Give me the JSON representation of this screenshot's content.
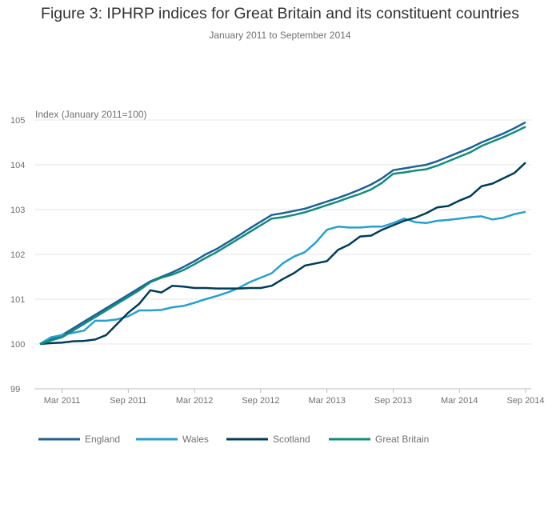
{
  "title": "Figure 3: IPHRP indices for Great Britain and its constituent countries",
  "subtitle": "January 2011 to September 2014",
  "chart_data": {
    "type": "line",
    "title": "Figure 3: IPHRP indices for Great Britain and its constituent countries",
    "subtitle": "January 2011 to September 2014",
    "ylabel": "Index (January 2011=100)",
    "xlabel": "",
    "ylim": [
      99,
      105
    ],
    "yticks": [
      99,
      100,
      101,
      102,
      103,
      104,
      105
    ],
    "xticks": [
      "Mar 2011",
      "Sep 2011",
      "Mar 2012",
      "Sep 2012",
      "Mar 2013",
      "Sep 2013",
      "Mar 2014",
      "Sep 2014"
    ],
    "x": [
      "Jan 2011",
      "Feb 2011",
      "Mar 2011",
      "Apr 2011",
      "May 2011",
      "Jun 2011",
      "Jul 2011",
      "Aug 2011",
      "Sep 2011",
      "Oct 2011",
      "Nov 2011",
      "Dec 2011",
      "Jan 2012",
      "Feb 2012",
      "Mar 2012",
      "Apr 2012",
      "May 2012",
      "Jun 2012",
      "Jul 2012",
      "Aug 2012",
      "Sep 2012",
      "Oct 2012",
      "Nov 2012",
      "Dec 2012",
      "Jan 2013",
      "Feb 2013",
      "Mar 2013",
      "Apr 2013",
      "May 2013",
      "Jun 2013",
      "Jul 2013",
      "Aug 2013",
      "Sep 2013",
      "Oct 2013",
      "Nov 2013",
      "Dec 2013",
      "Jan 2014",
      "Feb 2014",
      "Mar 2014",
      "Apr 2014",
      "May 2014",
      "Jun 2014",
      "Jul 2014",
      "Aug 2014",
      "Sep 2014"
    ],
    "grid": true,
    "legend_position": "bottom",
    "series": [
      {
        "name": "England",
        "color": "#206095",
        "values": [
          100.0,
          100.1,
          100.2,
          100.35,
          100.5,
          100.65,
          100.8,
          100.95,
          101.1,
          101.25,
          101.4,
          101.5,
          101.6,
          101.72,
          101.85,
          102.0,
          102.12,
          102.27,
          102.42,
          102.58,
          102.73,
          102.88,
          102.92,
          102.97,
          103.02,
          103.1,
          103.18,
          103.26,
          103.35,
          103.45,
          103.56,
          103.7,
          103.88,
          103.92,
          103.96,
          104.0,
          104.08,
          104.18,
          104.28,
          104.38,
          104.5,
          104.6,
          104.7,
          104.82,
          104.95
        ]
      },
      {
        "name": "Wales",
        "color": "#27A0CC",
        "values": [
          100.0,
          100.15,
          100.2,
          100.25,
          100.3,
          100.52,
          100.52,
          100.55,
          100.62,
          100.75,
          100.75,
          100.76,
          100.82,
          100.85,
          100.92,
          101.0,
          101.07,
          101.15,
          101.25,
          101.38,
          101.48,
          101.58,
          101.8,
          101.95,
          102.05,
          102.27,
          102.55,
          102.62,
          102.6,
          102.6,
          102.62,
          102.62,
          102.7,
          102.8,
          102.72,
          102.7,
          102.75,
          102.77,
          102.8,
          102.83,
          102.85,
          102.78,
          102.82,
          102.9,
          102.95
        ]
      },
      {
        "name": "Scotland",
        "color": "#003C57",
        "values": [
          100.0,
          100.02,
          100.03,
          100.06,
          100.07,
          100.1,
          100.2,
          100.45,
          100.7,
          100.9,
          101.2,
          101.15,
          101.3,
          101.28,
          101.25,
          101.25,
          101.24,
          101.24,
          101.24,
          101.25,
          101.25,
          101.3,
          101.45,
          101.58,
          101.75,
          101.8,
          101.85,
          102.1,
          102.22,
          102.4,
          102.42,
          102.55,
          102.65,
          102.75,
          102.82,
          102.92,
          103.05,
          103.08,
          103.2,
          103.3,
          103.52,
          103.58,
          103.7,
          103.82,
          104.05
        ]
      },
      {
        "name": "Great Britain",
        "color": "#118C7B",
        "values": [
          100.0,
          100.08,
          100.15,
          100.3,
          100.45,
          100.6,
          100.75,
          100.9,
          101.05,
          101.2,
          101.38,
          101.48,
          101.55,
          101.65,
          101.78,
          101.92,
          102.05,
          102.2,
          102.35,
          102.5,
          102.65,
          102.8,
          102.83,
          102.88,
          102.94,
          103.02,
          103.1,
          103.18,
          103.27,
          103.35,
          103.45,
          103.6,
          103.8,
          103.83,
          103.87,
          103.9,
          103.98,
          104.08,
          104.18,
          104.28,
          104.42,
          104.52,
          104.62,
          104.73,
          104.85
        ]
      }
    ]
  }
}
